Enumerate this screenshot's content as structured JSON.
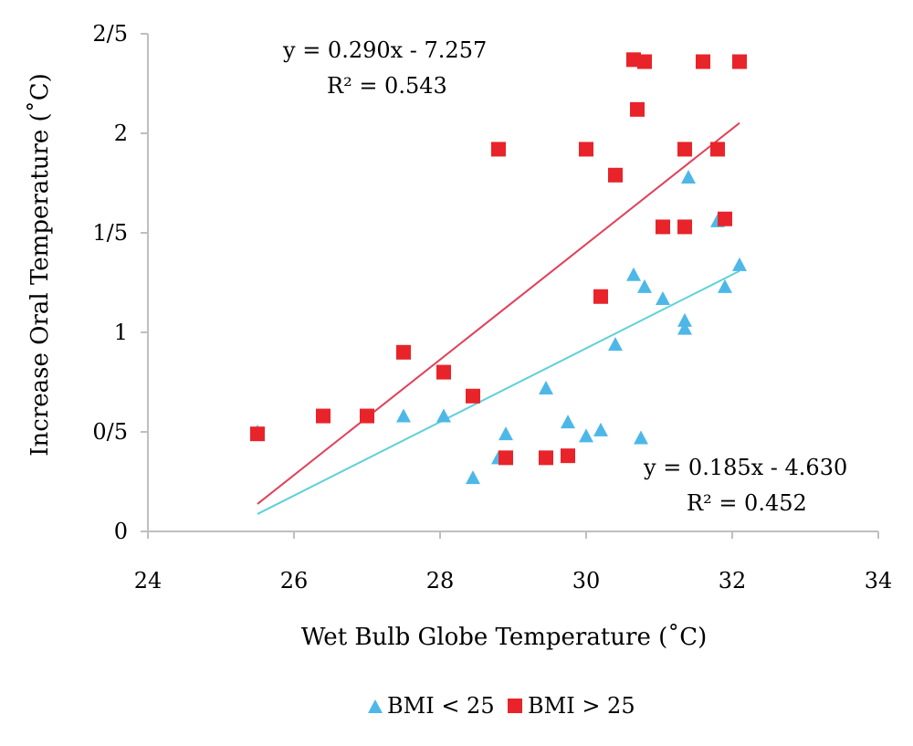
{
  "chart_data": {
    "type": "scatter",
    "xlabel": "Wet Bulb Globe Temperature (˚C)",
    "ylabel": "Increase Oral Temperature (˚C)",
    "xlim": [
      24,
      34
    ],
    "ylim": [
      0,
      2.5
    ],
    "x_ticks": [
      24,
      26,
      28,
      30,
      32,
      34
    ],
    "x_tick_labels": [
      "24",
      "26",
      "28",
      "30",
      "32",
      "34"
    ],
    "y_ticks": [
      0,
      0.5,
      1,
      1.5,
      2,
      2.5
    ],
    "y_tick_labels": [
      "0",
      "0/5",
      "1",
      "1/5",
      "2",
      "2/5"
    ],
    "grid": false,
    "legend_position": "bottom",
    "series": [
      {
        "name": "BMI < 25",
        "marker": "triangle",
        "color": "#4db8e8",
        "points": [
          [
            25.5,
            0.5
          ],
          [
            26.4,
            0.58
          ],
          [
            27.0,
            0.58
          ],
          [
            27.5,
            0.58
          ],
          [
            28.05,
            0.58
          ],
          [
            28.45,
            0.27
          ],
          [
            28.8,
            0.37
          ],
          [
            28.9,
            0.49
          ],
          [
            29.45,
            0.72
          ],
          [
            29.75,
            0.55
          ],
          [
            30.0,
            0.48
          ],
          [
            30.2,
            0.51
          ],
          [
            30.4,
            0.94
          ],
          [
            30.65,
            1.29
          ],
          [
            30.75,
            0.47
          ],
          [
            30.8,
            1.23
          ],
          [
            31.05,
            1.17
          ],
          [
            31.35,
            1.02
          ],
          [
            31.35,
            1.06
          ],
          [
            31.4,
            1.78
          ],
          [
            31.8,
            1.56
          ],
          [
            31.9,
            1.23
          ],
          [
            32.1,
            1.34
          ]
        ],
        "trendline": {
          "slope": 0.185,
          "intercept": -4.63,
          "x_range": [
            25.5,
            32.1
          ],
          "color": "#5fd0d8"
        },
        "equation": "y = 0.185x - 4.630",
        "r2": "R² = 0.452"
      },
      {
        "name": "BMI > 25",
        "marker": "square",
        "color": "#e8242a",
        "points": [
          [
            25.5,
            0.49
          ],
          [
            26.4,
            0.58
          ],
          [
            27.0,
            0.58
          ],
          [
            27.5,
            0.9
          ],
          [
            28.05,
            0.8
          ],
          [
            28.45,
            0.68
          ],
          [
            28.8,
            1.92
          ],
          [
            28.9,
            0.37
          ],
          [
            29.45,
            0.37
          ],
          [
            29.75,
            0.38
          ],
          [
            30.0,
            1.92
          ],
          [
            30.2,
            1.18
          ],
          [
            30.4,
            1.79
          ],
          [
            30.65,
            2.37
          ],
          [
            30.7,
            2.12
          ],
          [
            30.8,
            2.36
          ],
          [
            31.05,
            1.53
          ],
          [
            31.35,
            1.92
          ],
          [
            31.35,
            1.53
          ],
          [
            31.6,
            2.36
          ],
          [
            31.8,
            1.92
          ],
          [
            31.9,
            1.57
          ],
          [
            32.1,
            2.36
          ]
        ],
        "trendline": {
          "slope": 0.29,
          "intercept": -7.257,
          "x_range": [
            25.5,
            32.1
          ],
          "color": "#e0415a"
        },
        "equation": "y = 0.290x - 7.257",
        "r2": "R² = 0.543"
      }
    ]
  }
}
